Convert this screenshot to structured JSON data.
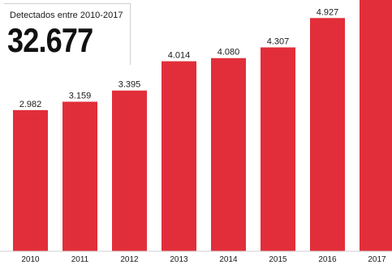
{
  "callout": {
    "label": "Detectados entre 2010-2017",
    "total": "32.677"
  },
  "colors": {
    "bar": "#e22e3a",
    "text": "#1a1a1a",
    "baseline": "#cfcfcf"
  },
  "chart_data": {
    "type": "bar",
    "categories": [
      "2010",
      "2011",
      "2012",
      "2013",
      "2014",
      "2015",
      "2016",
      "2017"
    ],
    "values": [
      2982,
      3159,
      3395,
      4014,
      4080,
      4307,
      4927,
      5813
    ],
    "value_labels": [
      "2.982",
      "3.159",
      "3.395",
      "4.014",
      "4.080",
      "4.307",
      "4.927",
      ""
    ],
    "title": "",
    "xlabel": "",
    "ylabel": "",
    "grid": false,
    "legend": "none"
  }
}
